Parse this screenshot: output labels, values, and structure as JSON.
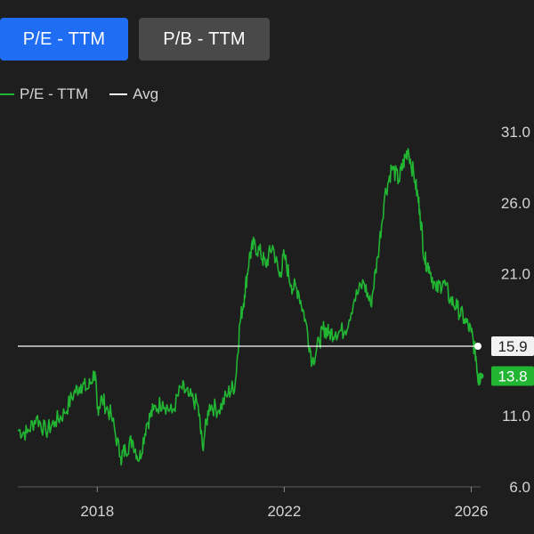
{
  "tabs": [
    {
      "label": "P/E - TTM",
      "active": true
    },
    {
      "label": "P/B - TTM",
      "active": false
    }
  ],
  "legend": [
    {
      "label": "P/E - TTM",
      "color": "#22b533"
    },
    {
      "label": "Avg",
      "color": "#ffffff"
    }
  ],
  "colors": {
    "background": "#1e1e1e",
    "active_tab": "#1f6df2",
    "inactive_tab": "#494949",
    "series": "#22b533",
    "avg_line": "#ffffff",
    "avg_badge": "#f2f2f2",
    "current_badge": "#22b533"
  },
  "chart_data": {
    "type": "line",
    "x_ticks": [
      "2018",
      "2022",
      "2026"
    ],
    "y_ticks": [
      "6.0",
      "11.0",
      "16.0",
      "21.0",
      "26.0",
      "31.0"
    ],
    "y_tick_values": [
      6,
      11,
      16,
      21,
      26,
      31
    ],
    "ylim": [
      6,
      31
    ],
    "xlim": [
      2016.3,
      2026.2
    ],
    "y_axis_position": "right",
    "grid": false,
    "legend_position": "top-left",
    "avg": {
      "label": "15.9",
      "value": 15.9
    },
    "current": {
      "label": "13.8",
      "value": 13.8
    },
    "series": [
      {
        "name": "P/E - TTM",
        "x": [
          2016.3,
          2016.5,
          2016.7,
          2016.9,
          2017.1,
          2017.3,
          2017.5,
          2017.65,
          2017.8,
          2017.95,
          2018.0,
          2018.1,
          2018.3,
          2018.5,
          2018.6,
          2018.75,
          2018.9,
          2019.05,
          2019.2,
          2019.4,
          2019.6,
          2019.8,
          2019.95,
          2020.15,
          2020.25,
          2020.4,
          2020.6,
          2020.8,
          2020.95,
          2021.05,
          2021.15,
          2021.25,
          2021.35,
          2021.5,
          2021.6,
          2021.75,
          2021.9,
          2022.0,
          2022.15,
          2022.3,
          2022.45,
          2022.6,
          2022.75,
          2022.85,
          2022.95,
          2023.1,
          2023.3,
          2023.5,
          2023.7,
          2023.85,
          2024.0,
          2024.15,
          2024.3,
          2024.45,
          2024.55,
          2024.65,
          2024.8,
          2024.9,
          2025.0,
          2025.1,
          2025.25,
          2025.4,
          2025.55,
          2025.7,
          2025.85,
          2026.0,
          2026.1,
          2026.15,
          2026.2
        ],
        "values": [
          10.0,
          9.8,
          10.9,
          9.9,
          10.6,
          11.2,
          12.6,
          13.2,
          12.9,
          14.1,
          11.5,
          12.2,
          11.0,
          8.1,
          8.6,
          9.3,
          7.9,
          10.4,
          11.4,
          12.0,
          11.2,
          13.0,
          12.4,
          11.8,
          8.8,
          11.8,
          11.4,
          12.6,
          13.2,
          17.5,
          19.5,
          22.1,
          23.1,
          22.4,
          21.6,
          23.0,
          20.8,
          22.3,
          20.2,
          19.8,
          17.8,
          14.8,
          16.2,
          17.2,
          16.8,
          16.9,
          17.0,
          19.2,
          20.4,
          18.8,
          22.2,
          26.5,
          28.5,
          27.6,
          28.8,
          29.8,
          27.5,
          25.5,
          22.0,
          21.5,
          19.8,
          20.5,
          19.2,
          18.6,
          17.8,
          16.9,
          15.2,
          13.6,
          13.8
        ]
      }
    ]
  }
}
